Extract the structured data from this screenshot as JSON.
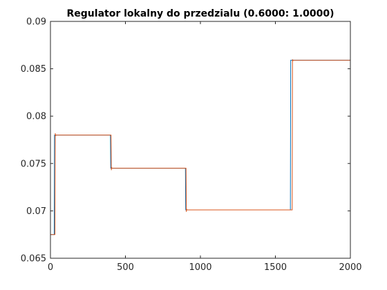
{
  "chart_data": {
    "type": "line",
    "title": "Regulator lokalny do przedzialu (0.6000: 1.0000)",
    "xlabel": "",
    "ylabel": "",
    "xlim": [
      0,
      2000
    ],
    "ylim": [
      0.065,
      0.09
    ],
    "xticks": [
      0,
      500,
      1000,
      1500,
      2000
    ],
    "xtick_labels": [
      "0",
      "500",
      "1000",
      "1500",
      "2000"
    ],
    "yticks": [
      0.065,
      0.07,
      0.075,
      0.08,
      0.085,
      0.09
    ],
    "ytick_labels": [
      "0.065",
      "0.07",
      "0.075",
      "0.08",
      "0.085",
      "0.09"
    ],
    "grid": false,
    "legend": "none",
    "series": [
      {
        "color": "#0072BD",
        "x": [
          0,
          25,
          27,
          400,
          402,
          900,
          902,
          1600,
          1602,
          2000
        ],
        "y": [
          0.0675,
          0.0675,
          0.078,
          0.078,
          0.0745,
          0.0745,
          0.0701,
          0.0701,
          0.0859,
          0.0859
        ]
      },
      {
        "color": "#D95319",
        "x": [
          0,
          30,
          32,
          34,
          36,
          404,
          406,
          408,
          410,
          904,
          906,
          908,
          910,
          1612,
          1614,
          1616,
          1618,
          2000
        ],
        "y": [
          0.0675,
          0.0675,
          0.0782,
          0.0779,
          0.078,
          0.078,
          0.0743,
          0.0746,
          0.0745,
          0.0745,
          0.0699,
          0.0702,
          0.0701,
          0.0701,
          0.086,
          0.0858,
          0.0859,
          0.0859
        ]
      }
    ]
  }
}
